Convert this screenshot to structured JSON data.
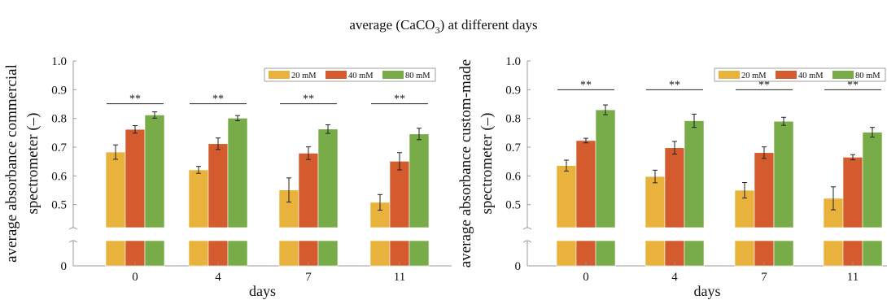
{
  "figure_title_main": "average (CaCO",
  "figure_title_sub": "3",
  "figure_title_end": ") at different days",
  "colors": {
    "20 mM": "#E8B23C",
    "40 mM": "#D35B2E",
    "80 mM": "#77AC48"
  },
  "chart_data": [
    {
      "type": "bar",
      "title": "",
      "xlabel": "days",
      "ylabel_lines": [
        "average absorbance commercial",
        "spectrometer (–)"
      ],
      "categories": [
        "0",
        "4",
        "7",
        "11"
      ],
      "ylim": [
        0.42,
        1.0
      ],
      "axis_break": true,
      "yticks": [
        "0",
        "0.5",
        "0.6",
        "0.7",
        "0.8",
        "0.9",
        "1.0"
      ],
      "legend_position": "top-right",
      "series": [
        {
          "name": "20 mM",
          "values": [
            0.683,
            0.621,
            0.551,
            0.508
          ],
          "errors": [
            0.025,
            0.012,
            0.042,
            0.027
          ]
        },
        {
          "name": "40 mM",
          "values": [
            0.762,
            0.712,
            0.679,
            0.651
          ],
          "errors": [
            0.013,
            0.02,
            0.022,
            0.03
          ]
        },
        {
          "name": "80 mM",
          "values": [
            0.812,
            0.801,
            0.763,
            0.746
          ],
          "errors": [
            0.011,
            0.009,
            0.015,
            0.02
          ]
        }
      ],
      "significance_label": "**",
      "significance_level": 0.851
    },
    {
      "type": "bar",
      "title": "",
      "xlabel": "days",
      "ylabel_lines": [
        "average absorbance custom-made",
        "spectrometer (–)"
      ],
      "categories": [
        "0",
        "4",
        "7",
        "11"
      ],
      "ylim": [
        0.42,
        1.0
      ],
      "axis_break": true,
      "yticks": [
        "0",
        "0.5",
        "0.6",
        "0.7",
        "0.8",
        "0.9",
        "1.0"
      ],
      "legend_position": "top-right",
      "series": [
        {
          "name": "20 mM",
          "values": [
            0.636,
            0.598,
            0.55,
            0.522
          ],
          "errors": [
            0.019,
            0.022,
            0.027,
            0.04
          ]
        },
        {
          "name": "40 mM",
          "values": [
            0.723,
            0.698,
            0.681,
            0.665
          ],
          "errors": [
            0.008,
            0.022,
            0.02,
            0.009
          ]
        },
        {
          "name": "80 mM",
          "values": [
            0.83,
            0.792,
            0.79,
            0.752
          ],
          "errors": [
            0.017,
            0.023,
            0.014,
            0.017
          ]
        }
      ],
      "significance_label": "**",
      "significance_level": 0.9
    }
  ]
}
